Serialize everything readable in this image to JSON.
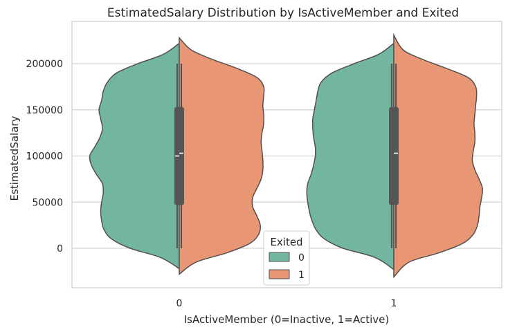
{
  "chart_data": {
    "type": "violin",
    "title": "EstimatedSalary Distribution by IsActiveMember and Exited",
    "xlabel": "IsActiveMember (0=Inactive, 1=Active)",
    "ylabel": "EstimatedSalary",
    "categories": [
      "0",
      "1"
    ],
    "y_ticks": [
      "0",
      "50000",
      "100000",
      "150000",
      "200000"
    ],
    "ylim": [
      -42000,
      243000
    ],
    "grid": "horizontal",
    "split": true,
    "legend": {
      "title": "Exited",
      "placement": "lower-center",
      "entries": [
        "0",
        "1"
      ]
    },
    "series": [
      {
        "legend_label": "0",
        "color": "#72b6a1",
        "groups": [
          {
            "category": "0",
            "density_y": [
              -22000,
              -10000,
              0,
              10000,
              20000,
              30000,
              40000,
              50000,
              60000,
              70000,
              80000,
              90000,
              100000,
              110000,
              120000,
              130000,
              140000,
              150000,
              160000,
              170000,
              180000,
              190000,
              200000,
              210000,
              222000
            ],
            "density_w": [
              0.0,
              0.22,
              0.58,
              0.8,
              0.89,
              0.92,
              0.93,
              0.92,
              0.9,
              0.91,
              0.98,
              1.04,
              1.06,
              1.0,
              0.94,
              0.91,
              0.93,
              0.95,
              0.92,
              0.9,
              0.85,
              0.74,
              0.49,
              0.19,
              0.0
            ],
            "median": 100000,
            "q1": 50000,
            "q3": 150000,
            "whisker_low": 0,
            "whisker_high": 200000
          },
          {
            "category": "1",
            "density_y": [
              -23000,
              -10000,
              0,
              10000,
              20000,
              30000,
              40000,
              50000,
              60000,
              70000,
              80000,
              90000,
              100000,
              110000,
              120000,
              130000,
              140000,
              150000,
              160000,
              170000,
              180000,
              190000,
              200000,
              210000,
              222000
            ],
            "density_w": [
              0.0,
              0.22,
              0.6,
              0.82,
              0.92,
              0.97,
              1.0,
              1.02,
              1.03,
              1.02,
              0.98,
              0.95,
              0.93,
              0.93,
              0.95,
              0.96,
              0.96,
              0.94,
              0.92,
              0.9,
              0.86,
              0.73,
              0.47,
              0.18,
              0.0
            ]
          }
        ]
      },
      {
        "legend_label": "1",
        "color": "#e99675",
        "groups": [
          {
            "category": "0",
            "density_y": [
              -28000,
              -15000,
              -5000,
              5000,
              15000,
              25000,
              35000,
              45000,
              55000,
              65000,
              75000,
              85000,
              95000,
              105000,
              115000,
              125000,
              135000,
              145000,
              155000,
              165000,
              175000,
              185000,
              195000,
              205000,
              215000,
              228000
            ],
            "density_w": [
              0.0,
              0.2,
              0.56,
              0.83,
              0.94,
              0.96,
              0.92,
              0.87,
              0.87,
              0.92,
              0.97,
              0.99,
              0.99,
              0.98,
              0.97,
              0.98,
              1.0,
              1.0,
              0.99,
              1.0,
              1.0,
              0.92,
              0.68,
              0.38,
              0.14,
              0.0
            ],
            "median": 103000
          },
          {
            "category": "1",
            "density_y": [
              -31000,
              -15000,
              -5000,
              5000,
              15000,
              25000,
              35000,
              45000,
              55000,
              65000,
              75000,
              85000,
              95000,
              105000,
              115000,
              125000,
              135000,
              145000,
              155000,
              165000,
              175000,
              185000,
              195000,
              205000,
              215000,
              231000
            ],
            "density_w": [
              0.0,
              0.18,
              0.53,
              0.81,
              0.94,
              0.99,
              1.01,
              1.02,
              1.04,
              1.05,
              1.01,
              0.96,
              0.93,
              0.94,
              0.96,
              0.96,
              0.95,
              0.96,
              0.97,
              0.98,
              0.97,
              0.88,
              0.62,
              0.33,
              0.11,
              0.0
            ],
            "median": 103000
          }
        ]
      }
    ],
    "box_color": "#555555",
    "outline_color": "#505050"
  }
}
